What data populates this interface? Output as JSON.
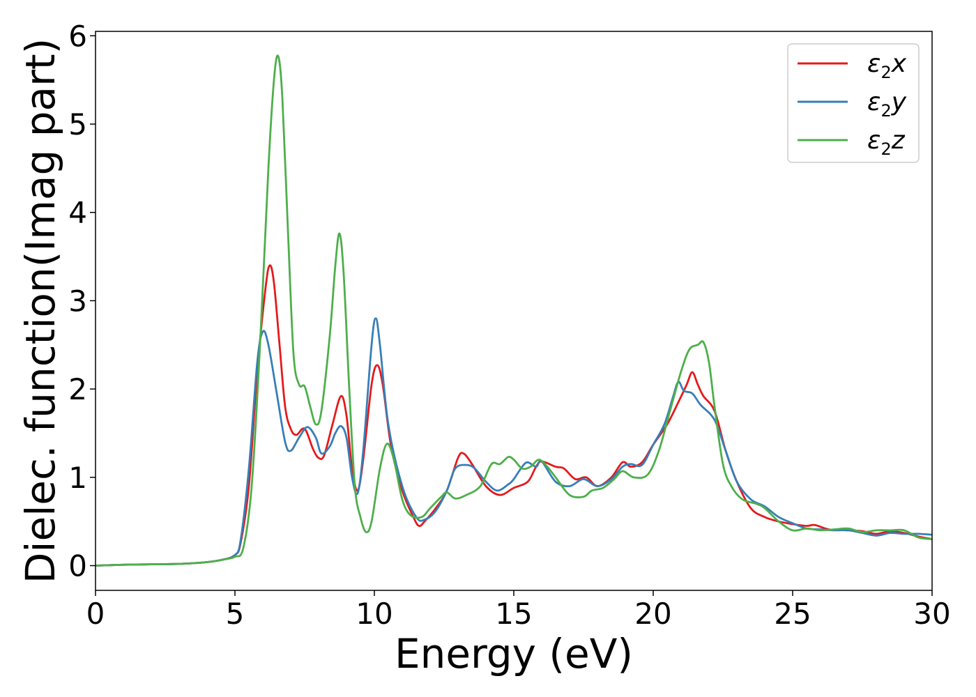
{
  "chart_data": {
    "type": "line",
    "xlabel": "Energy (eV)",
    "ylabel": "Dielec. function(Imag part)",
    "xlim": [
      0,
      30
    ],
    "ylim": [
      -0.28,
      6.05
    ],
    "xticks": [
      0,
      5,
      10,
      15,
      20,
      25,
      30
    ],
    "yticks": [
      0,
      1,
      2,
      3,
      4,
      5,
      6
    ],
    "grid": false,
    "legend_position": "top-right",
    "series": [
      {
        "name": "ε2x",
        "legend": {
          "base": "ε",
          "sub": "2",
          "var": "x"
        },
        "color": "#e41a1c",
        "points": [
          [
            0,
            0.0
          ],
          [
            1,
            0.01
          ],
          [
            2,
            0.015
          ],
          [
            3,
            0.02
          ],
          [
            4,
            0.04
          ],
          [
            4.6,
            0.07
          ],
          [
            5.0,
            0.12
          ],
          [
            5.2,
            0.25
          ],
          [
            5.5,
            0.9
          ],
          [
            5.8,
            2.2
          ],
          [
            6.1,
            3.15
          ],
          [
            6.25,
            3.4
          ],
          [
            6.4,
            3.2
          ],
          [
            6.6,
            2.5
          ],
          [
            6.8,
            1.8
          ],
          [
            7.0,
            1.55
          ],
          [
            7.2,
            1.48
          ],
          [
            7.5,
            1.55
          ],
          [
            7.8,
            1.32
          ],
          [
            8.0,
            1.22
          ],
          [
            8.2,
            1.25
          ],
          [
            8.5,
            1.6
          ],
          [
            8.8,
            1.92
          ],
          [
            9.0,
            1.7
          ],
          [
            9.2,
            1.1
          ],
          [
            9.4,
            0.85
          ],
          [
            9.6,
            1.2
          ],
          [
            9.9,
            2.05
          ],
          [
            10.1,
            2.27
          ],
          [
            10.3,
            2.05
          ],
          [
            10.6,
            1.35
          ],
          [
            11.0,
            0.85
          ],
          [
            11.4,
            0.55
          ],
          [
            11.6,
            0.45
          ],
          [
            11.8,
            0.5
          ],
          [
            12.2,
            0.65
          ],
          [
            12.6,
            0.85
          ],
          [
            13.0,
            1.22
          ],
          [
            13.2,
            1.27
          ],
          [
            13.5,
            1.15
          ],
          [
            14.0,
            0.9
          ],
          [
            14.5,
            0.8
          ],
          [
            15.0,
            0.88
          ],
          [
            15.5,
            0.95
          ],
          [
            15.8,
            1.12
          ],
          [
            16.0,
            1.18
          ],
          [
            16.5,
            1.12
          ],
          [
            16.8,
            1.1
          ],
          [
            17.2,
            0.98
          ],
          [
            17.6,
            1.0
          ],
          [
            18.0,
            0.9
          ],
          [
            18.5,
            1.0
          ],
          [
            18.9,
            1.17
          ],
          [
            19.2,
            1.12
          ],
          [
            19.6,
            1.17
          ],
          [
            20.0,
            1.37
          ],
          [
            20.5,
            1.6
          ],
          [
            20.9,
            1.85
          ],
          [
            21.2,
            2.05
          ],
          [
            21.4,
            2.19
          ],
          [
            21.6,
            2.05
          ],
          [
            21.8,
            1.92
          ],
          [
            22.2,
            1.75
          ],
          [
            22.6,
            1.3
          ],
          [
            23.0,
            0.95
          ],
          [
            23.5,
            0.65
          ],
          [
            24.0,
            0.55
          ],
          [
            24.5,
            0.5
          ],
          [
            25.0,
            0.47
          ],
          [
            25.5,
            0.45
          ],
          [
            25.8,
            0.46
          ],
          [
            26.3,
            0.41
          ],
          [
            27.0,
            0.4
          ],
          [
            27.5,
            0.39
          ],
          [
            28.0,
            0.36
          ],
          [
            28.5,
            0.39
          ],
          [
            29.0,
            0.37
          ],
          [
            29.5,
            0.33
          ],
          [
            30.0,
            0.3
          ]
        ]
      },
      {
        "name": "ε2y",
        "legend": {
          "base": "ε",
          "sub": "2",
          "var": "y"
        },
        "color": "#377eb8",
        "points": [
          [
            0,
            0.0
          ],
          [
            1,
            0.01
          ],
          [
            2,
            0.015
          ],
          [
            3,
            0.02
          ],
          [
            4,
            0.04
          ],
          [
            4.6,
            0.07
          ],
          [
            5.0,
            0.12
          ],
          [
            5.2,
            0.28
          ],
          [
            5.5,
            1.1
          ],
          [
            5.8,
            2.3
          ],
          [
            6.0,
            2.65
          ],
          [
            6.2,
            2.5
          ],
          [
            6.5,
            1.95
          ],
          [
            6.8,
            1.4
          ],
          [
            7.0,
            1.3
          ],
          [
            7.3,
            1.45
          ],
          [
            7.6,
            1.57
          ],
          [
            7.9,
            1.45
          ],
          [
            8.1,
            1.27
          ],
          [
            8.4,
            1.35
          ],
          [
            8.6,
            1.5
          ],
          [
            8.8,
            1.58
          ],
          [
            9.0,
            1.45
          ],
          [
            9.2,
            1.0
          ],
          [
            9.4,
            0.82
          ],
          [
            9.6,
            1.3
          ],
          [
            9.9,
            2.5
          ],
          [
            10.05,
            2.8
          ],
          [
            10.2,
            2.5
          ],
          [
            10.5,
            1.6
          ],
          [
            11.0,
            0.9
          ],
          [
            11.5,
            0.55
          ],
          [
            11.8,
            0.52
          ],
          [
            12.2,
            0.62
          ],
          [
            12.6,
            0.85
          ],
          [
            12.9,
            1.1
          ],
          [
            13.3,
            1.14
          ],
          [
            13.6,
            1.1
          ],
          [
            14.0,
            0.95
          ],
          [
            14.4,
            0.85
          ],
          [
            14.8,
            0.92
          ],
          [
            15.0,
            0.98
          ],
          [
            15.3,
            1.12
          ],
          [
            15.5,
            1.17
          ],
          [
            15.8,
            1.12
          ],
          [
            16.0,
            1.18
          ],
          [
            16.5,
            0.95
          ],
          [
            17.0,
            0.9
          ],
          [
            17.5,
            0.98
          ],
          [
            18.0,
            0.9
          ],
          [
            18.5,
            0.98
          ],
          [
            18.9,
            1.12
          ],
          [
            19.2,
            1.15
          ],
          [
            19.6,
            1.14
          ],
          [
            20.0,
            1.37
          ],
          [
            20.4,
            1.6
          ],
          [
            20.7,
            1.9
          ],
          [
            20.9,
            2.08
          ],
          [
            21.1,
            1.98
          ],
          [
            21.4,
            1.95
          ],
          [
            21.7,
            1.82
          ],
          [
            22.2,
            1.65
          ],
          [
            22.6,
            1.3
          ],
          [
            23.0,
            0.95
          ],
          [
            23.5,
            0.75
          ],
          [
            24.0,
            0.67
          ],
          [
            24.5,
            0.55
          ],
          [
            25.0,
            0.48
          ],
          [
            25.5,
            0.42
          ],
          [
            26.0,
            0.41
          ],
          [
            26.5,
            0.4
          ],
          [
            27.0,
            0.4
          ],
          [
            27.5,
            0.37
          ],
          [
            28.0,
            0.34
          ],
          [
            28.5,
            0.37
          ],
          [
            29.0,
            0.36
          ],
          [
            29.5,
            0.36
          ],
          [
            30.0,
            0.35
          ]
        ]
      },
      {
        "name": "ε2z",
        "legend": {
          "base": "ε",
          "sub": "2",
          "var": "z"
        },
        "color": "#4daf4a",
        "points": [
          [
            0,
            0.0
          ],
          [
            1,
            0.01
          ],
          [
            2,
            0.015
          ],
          [
            3,
            0.02
          ],
          [
            4,
            0.04
          ],
          [
            4.6,
            0.07
          ],
          [
            5.0,
            0.1
          ],
          [
            5.3,
            0.2
          ],
          [
            5.6,
            0.9
          ],
          [
            5.9,
            2.5
          ],
          [
            6.2,
            4.5
          ],
          [
            6.4,
            5.5
          ],
          [
            6.55,
            5.77
          ],
          [
            6.7,
            5.3
          ],
          [
            6.9,
            3.8
          ],
          [
            7.1,
            2.4
          ],
          [
            7.3,
            2.05
          ],
          [
            7.5,
            2.03
          ],
          [
            7.7,
            1.8
          ],
          [
            7.9,
            1.6
          ],
          [
            8.1,
            1.75
          ],
          [
            8.4,
            2.6
          ],
          [
            8.6,
            3.4
          ],
          [
            8.75,
            3.76
          ],
          [
            8.9,
            3.3
          ],
          [
            9.1,
            2.0
          ],
          [
            9.3,
            0.9
          ],
          [
            9.5,
            0.55
          ],
          [
            9.7,
            0.38
          ],
          [
            9.9,
            0.5
          ],
          [
            10.2,
            1.1
          ],
          [
            10.45,
            1.38
          ],
          [
            10.7,
            1.2
          ],
          [
            11.0,
            0.75
          ],
          [
            11.3,
            0.57
          ],
          [
            11.7,
            0.55
          ],
          [
            12.0,
            0.65
          ],
          [
            12.4,
            0.78
          ],
          [
            12.6,
            0.83
          ],
          [
            12.9,
            0.76
          ],
          [
            13.3,
            0.8
          ],
          [
            13.8,
            0.9
          ],
          [
            14.2,
            1.15
          ],
          [
            14.5,
            1.15
          ],
          [
            14.8,
            1.23
          ],
          [
            15.0,
            1.2
          ],
          [
            15.3,
            1.1
          ],
          [
            15.6,
            1.12
          ],
          [
            15.9,
            1.2
          ],
          [
            16.2,
            1.12
          ],
          [
            16.5,
            1.0
          ],
          [
            17.0,
            0.8
          ],
          [
            17.5,
            0.78
          ],
          [
            17.8,
            0.85
          ],
          [
            18.2,
            0.88
          ],
          [
            18.6,
            0.98
          ],
          [
            18.9,
            1.07
          ],
          [
            19.3,
            1.0
          ],
          [
            19.8,
            1.03
          ],
          [
            20.2,
            1.3
          ],
          [
            20.6,
            1.75
          ],
          [
            21.0,
            2.2
          ],
          [
            21.3,
            2.45
          ],
          [
            21.6,
            2.5
          ],
          [
            21.8,
            2.53
          ],
          [
            22.0,
            2.3
          ],
          [
            22.2,
            1.8
          ],
          [
            22.5,
            1.15
          ],
          [
            22.8,
            0.9
          ],
          [
            23.2,
            0.75
          ],
          [
            23.7,
            0.7
          ],
          [
            24.0,
            0.65
          ],
          [
            24.5,
            0.5
          ],
          [
            25.0,
            0.4
          ],
          [
            25.5,
            0.42
          ],
          [
            26.0,
            0.4
          ],
          [
            26.5,
            0.41
          ],
          [
            27.0,
            0.42
          ],
          [
            27.5,
            0.38
          ],
          [
            28.0,
            0.4
          ],
          [
            28.5,
            0.4
          ],
          [
            29.0,
            0.4
          ],
          [
            29.5,
            0.32
          ],
          [
            30.0,
            0.3
          ]
        ]
      }
    ]
  }
}
